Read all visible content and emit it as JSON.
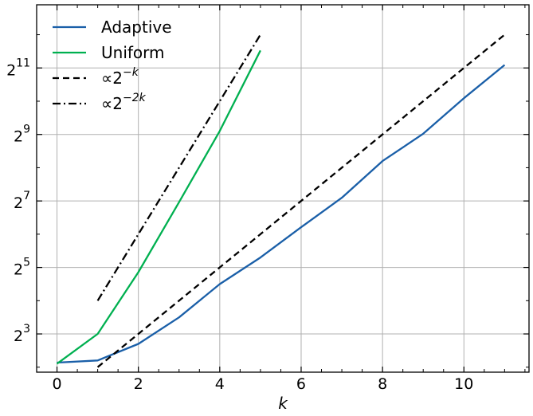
{
  "chart_data": {
    "type": "line",
    "xlabel": "k",
    "ylabel": "",
    "y_scale": "log2",
    "xlim": [
      -0.5,
      11.6
    ],
    "ylim_log2": [
      1.85,
      12.9
    ],
    "x_ticks": [
      0,
      2,
      4,
      6,
      8,
      10
    ],
    "x_tick_labels": [
      "0",
      "2",
      "4",
      "6",
      "8",
      "10"
    ],
    "y_ticks_log2": [
      3,
      5,
      7,
      9,
      11
    ],
    "y_tick_labels": [
      {
        "base": "2",
        "exp": "3"
      },
      {
        "base": "2",
        "exp": "5"
      },
      {
        "base": "2",
        "exp": "7"
      },
      {
        "base": "2",
        "exp": "9"
      },
      {
        "base": "2",
        "exp": "11"
      }
    ],
    "grid": true,
    "legend_position": "top-left",
    "series": [
      {
        "name": "Adaptive",
        "color": "#1a5fa8",
        "style": "solid",
        "x": [
          0,
          1,
          2,
          3,
          4,
          5,
          6,
          7,
          8,
          9,
          10,
          11
        ],
        "y": [
          4.4,
          4.6,
          6.5,
          11.3,
          22.6,
          39.4,
          74,
          137,
          294,
          520,
          1090,
          2180
        ]
      },
      {
        "name": "Uniform",
        "color": "#00b050",
        "style": "solid",
        "x": [
          0,
          1,
          2,
          3,
          4,
          5
        ],
        "y": [
          4.3,
          8.0,
          29.0,
          125,
          550,
          2950
        ]
      },
      {
        "name": "∝2^{-k}",
        "legend_prefix": "∝2",
        "legend_exp": "−k",
        "color": "#000000",
        "style": "dashed",
        "x": [
          1,
          11
        ],
        "y": [
          4.0,
          4096
        ]
      },
      {
        "name": "∝2^{-2k}",
        "legend_prefix": "∝2",
        "legend_exp": "−2k",
        "color": "#000000",
        "style": "dashdot",
        "x": [
          1,
          5
        ],
        "y": [
          16,
          4096
        ]
      }
    ]
  }
}
